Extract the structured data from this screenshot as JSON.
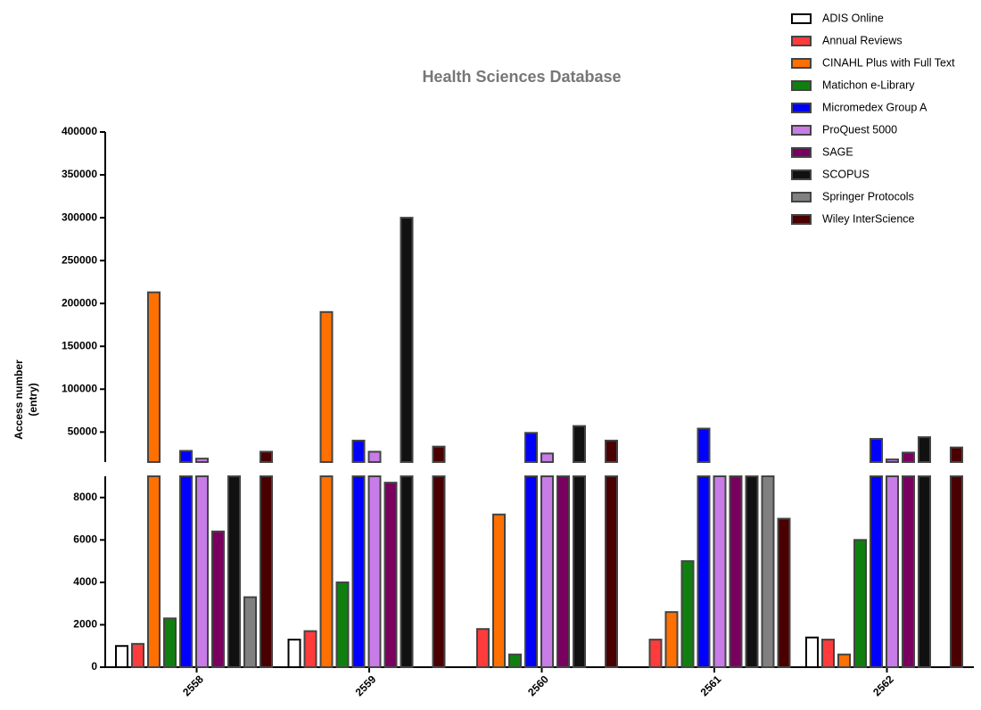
{
  "chart_data": {
    "type": "bar",
    "title": "Health Sciences Database",
    "y_label": [
      "Access number",
      "(entry)"
    ],
    "categories": [
      "2558",
      "2559",
      "2560",
      "2561",
      "2562"
    ],
    "ylim": [
      0,
      400000
    ],
    "ybreak": [
      9000,
      15000
    ],
    "yticks": [
      0,
      2000,
      4000,
      6000,
      8000,
      50000,
      100000,
      150000,
      200000,
      250000,
      300000,
      350000,
      400000
    ],
    "legend": "top-right",
    "series": [
      {
        "name": "ADIS Online",
        "color": "#ffffff",
        "values": [
          1000,
          1300,
          null,
          null,
          1400
        ]
      },
      {
        "name": "Annual Reviews",
        "color": "#ff3b3b",
        "values": [
          1100,
          1700,
          1800,
          1300,
          1300
        ]
      },
      {
        "name": "CINAHL Plus with Full Text",
        "color": "#ff7000",
        "values": [
          213000,
          190000,
          7200,
          2600,
          600
        ]
      },
      {
        "name": "Matichon e-Library",
        "color": "#0f800f",
        "values": [
          2300,
          4000,
          600,
          5000,
          6000
        ]
      },
      {
        "name": "Micromedex Group A",
        "color": "#0000ff",
        "values": [
          28000,
          40000,
          49000,
          54000,
          42000
        ]
      },
      {
        "name": "ProQuest 5000",
        "color": "#c77ce8",
        "values": [
          19000,
          27000,
          25000,
          11000,
          18000
        ]
      },
      {
        "name": "SAGE",
        "color": "#7a0060",
        "values": [
          6400,
          8700,
          11000,
          11000,
          26000
        ]
      },
      {
        "name": "SCOPUS",
        "color": "#111111",
        "values": [
          12000,
          300000,
          57000,
          11000,
          44000
        ]
      },
      {
        "name": "Springer Protocols",
        "color": "#808080",
        "values": [
          3300,
          null,
          null,
          12000,
          null
        ]
      },
      {
        "name": "Wiley InterScience",
        "color": "#4a0000",
        "values": [
          27000,
          33000,
          40000,
          7000,
          32000
        ]
      }
    ]
  }
}
